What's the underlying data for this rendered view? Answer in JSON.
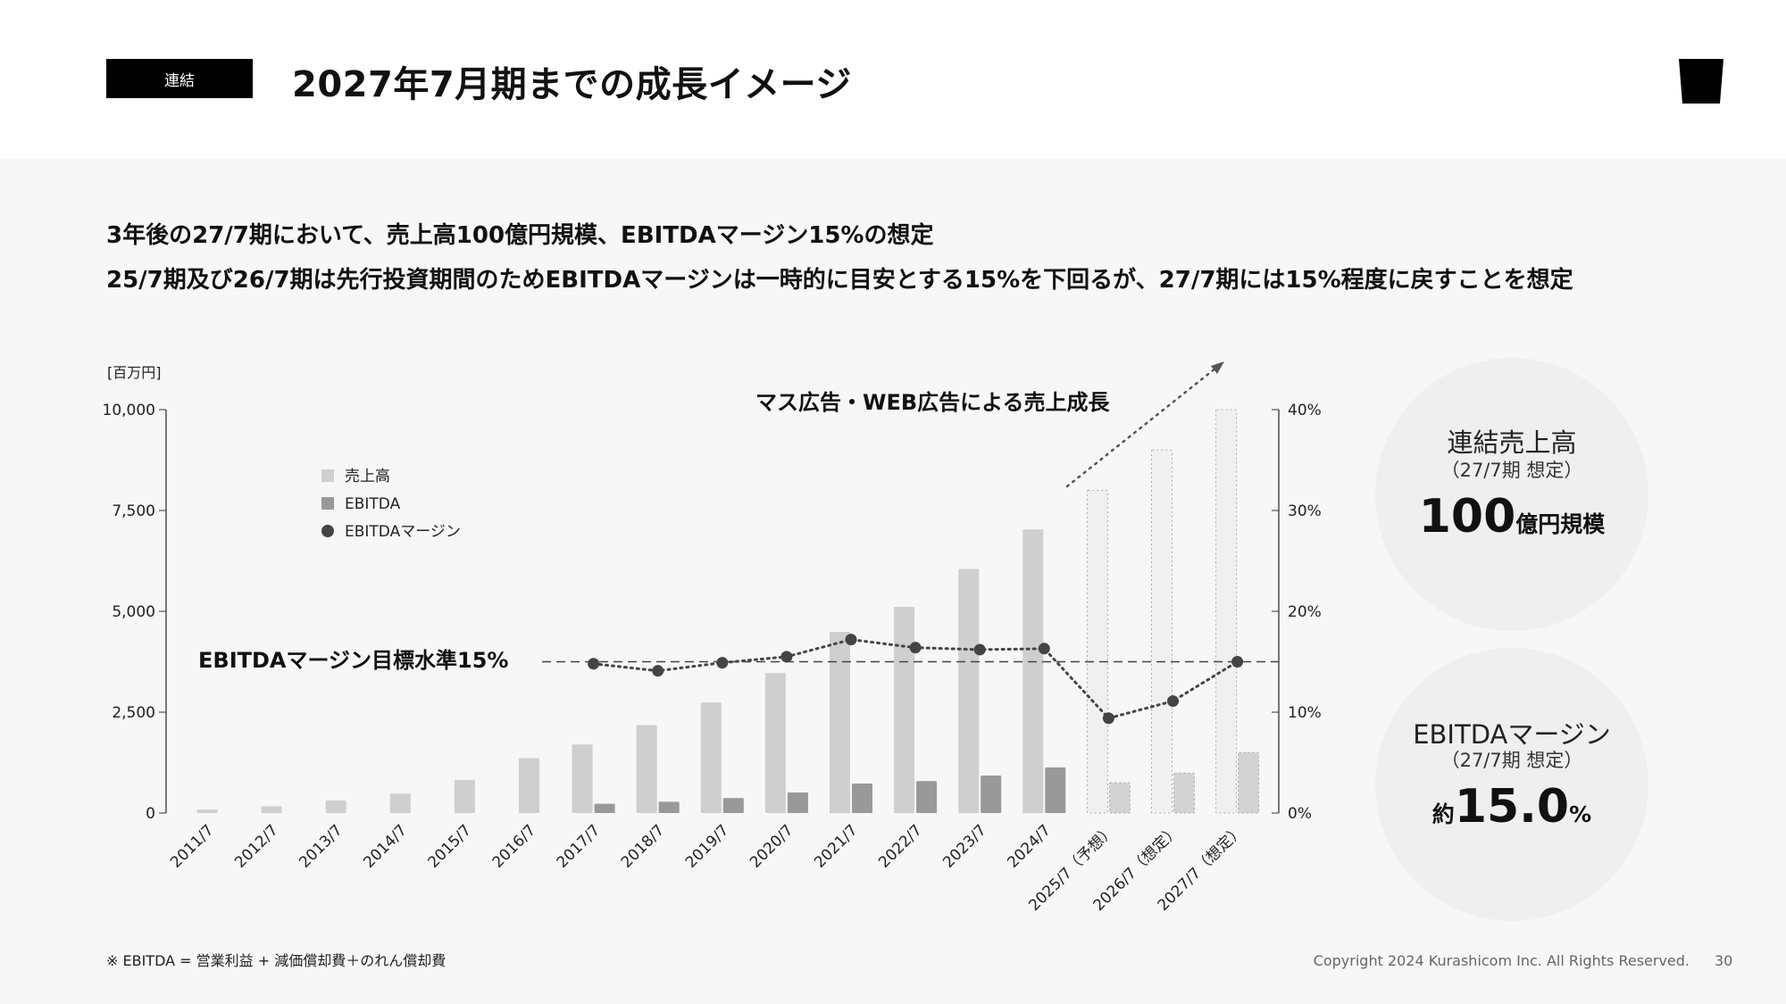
{
  "header": {
    "badge": "連結",
    "title": "2027年7月期までの成長イメージ",
    "logo": "cup-logo"
  },
  "lead": {
    "line1": "3年後の27/7期において、売上高100億円規模、EBITDAマージン15%の想定",
    "line2": "25/7期及び26/7期は先行投資期間のためEBITDAマージンは一時的に目安とする15%を下回るが、27/7期には15%程度に戻すことを想定"
  },
  "chart_data": {
    "type": "bar",
    "unit_label": "[百万円]",
    "categories": [
      "2011/7",
      "2012/7",
      "2013/7",
      "2014/7",
      "2015/7",
      "2016/7",
      "2017/7",
      "2018/7",
      "2019/7",
      "2020/7",
      "2021/7",
      "2022/7",
      "2023/7",
      "2024/7",
      "2025/7（予想）",
      "2026/7（想定）",
      "2027/7（想定）"
    ],
    "forecast_from_index": 14,
    "y_left": {
      "range": [
        0,
        10000
      ],
      "ticks": [
        0,
        2500,
        5000,
        7500,
        10000
      ],
      "tick_labels": [
        "0",
        "2,500",
        "5,000",
        "7,500",
        "10,000"
      ]
    },
    "y_right": {
      "range": [
        0,
        40
      ],
      "ticks": [
        0,
        10,
        20,
        30,
        40
      ],
      "tick_labels": [
        "0%",
        "10%",
        "20%",
        "30%",
        "40%"
      ]
    },
    "series": [
      {
        "name": "売上高",
        "type": "bar",
        "axis": "left",
        "color": "#cfcfcf",
        "values": [
          85,
          170,
          310,
          480,
          820,
          1360,
          1700,
          2180,
          2740,
          3470,
          4490,
          5110,
          6050,
          7030,
          8000,
          9000,
          10000
        ]
      },
      {
        "name": "EBITDA",
        "type": "bar",
        "axis": "left",
        "color": "#999999",
        "values": [
          null,
          null,
          null,
          null,
          null,
          null,
          230,
          280,
          370,
          510,
          730,
          790,
          930,
          1130,
          750,
          990,
          1500
        ]
      },
      {
        "name": "EBITDAマージン",
        "type": "line",
        "axis": "right",
        "color": "#444444",
        "values": [
          null,
          null,
          null,
          null,
          null,
          null,
          14.8,
          14.1,
          14.9,
          15.5,
          17.2,
          16.4,
          16.2,
          16.3,
          9.4,
          11.1,
          15.0
        ]
      }
    ],
    "target_line": {
      "label": "EBITDAマージン目標水準15%",
      "value": 15
    },
    "annotation": "マス広告・WEB広告による売上成長",
    "legend_placement": "top-left",
    "grid": false
  },
  "kpi": {
    "sales": {
      "title": "連結売上高",
      "sub": "（27/7期 想定）",
      "value": "100",
      "unit": "億円規模"
    },
    "margin": {
      "title": "EBITDAマージン",
      "sub": "（27/7期 想定）",
      "prefix": "約",
      "value": "15.0",
      "unit": "%"
    }
  },
  "footer": {
    "note": "※ EBITDA = 営業利益 + 減価償却費＋のれん償却費",
    "copyright": "Copyright 2024 Kurashicom Inc. All Rights Reserved.",
    "page": "30"
  }
}
